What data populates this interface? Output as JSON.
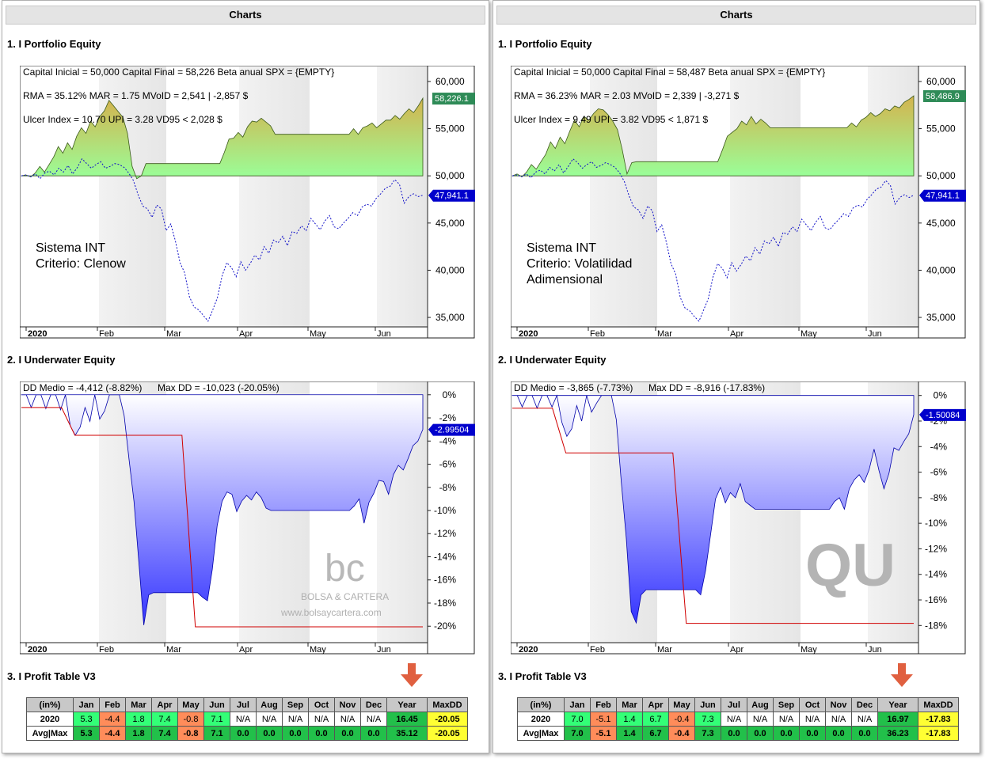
{
  "panels": [
    {
      "header": "Charts",
      "equity_title": "1. I Portfolio Equity",
      "underwater_title": "2. I Underwater Equity",
      "profit_title": "3. I Profit Table V3",
      "stats_line1": "Capital Inicial = 50,000   Capital Final = 58,226   Beta anual SPX = {EMPTY}",
      "stats_line2": "RMA = 35.12%   MAR = 1.75   MVoID = 2,541 | -2,857 $",
      "stats_line3": "Ulcer Index = 10.70   UPI = 3.28   VD95 < 2,028 $",
      "system_label1": "Sistema INT",
      "system_label2": "Criterio: Clenow",
      "system_label3": "",
      "dd_stats": "DD Medio = -4,412 (-8.82%)",
      "maxdd_stats": "Max DD = -10,023 (-20.05%)",
      "equity_badge": "58,226.1",
      "benchmark_badge": "47,941.1",
      "dd_badge": "-2.99504",
      "watermark": "bc",
      "watermark_line1": "BOLSA & CARTERA",
      "watermark_line2": "www.bolsaycartera.com"
    },
    {
      "header": "Charts",
      "equity_title": "1. I Portfolio Equity",
      "underwater_title": "2. I Underwater Equity",
      "profit_title": "3. I Profit Table V3",
      "stats_line1": "Capital Inicial = 50,000   Capital Final = 58,487   Beta anual SPX = {EMPTY}",
      "stats_line2": "RMA = 36.23%   MAR = 2.03   MVoID = 2,339 | -3,271 $",
      "stats_line3": "Ulcer Index = 9.49   UPI = 3.82   VD95 < 1,871 $",
      "system_label1": "Sistema INT",
      "system_label2": "Criterio: Volatilidad",
      "system_label3": "Adimensional",
      "dd_stats": "DD Medio = -3,865 (-7.73%)",
      "maxdd_stats": "Max DD = -8,916 (-17.83%)",
      "equity_badge": "58,486.9",
      "benchmark_badge": "47,941.1",
      "dd_badge": "-1.50084",
      "watermark": "QU",
      "watermark_line1": "",
      "watermark_line2": ""
    }
  ],
  "colors": {
    "equity_fill_top": "#d4b34e",
    "equity_fill_bottom": "#99ff99",
    "benchmark": "#1010c8",
    "dd_fill": "#3434ff",
    "maxdd_line": "#d00000",
    "badge_green": "#2e8b57",
    "badge_blue": "#0000cc",
    "arrow": "#e06040",
    "cell_green_bright": "#33ff77",
    "cell_green_dark": "#22c04a",
    "cell_orange": "#ff8c5a",
    "cell_yellow": "#ffff33"
  },
  "chart_data": [
    {
      "type": "area",
      "title": "1. I Portfolio Equity",
      "panel": 0,
      "x_labels": [
        "2020",
        "Feb",
        "Mar",
        "Apr",
        "May",
        "Jun"
      ],
      "yticks": [
        "60,000",
        "55,000",
        "50,000",
        "45,000",
        "40,000",
        "35,000"
      ],
      "ylim": [
        34000,
        61000
      ],
      "series": [
        {
          "values": [
            50000,
            50100,
            49900,
            50300,
            51000,
            50400,
            51200,
            52000,
            53100,
            52400,
            53500,
            52800,
            54200,
            55100,
            54500,
            55800,
            55200,
            56300,
            56900,
            58000,
            57400,
            56800,
            56200,
            54500,
            51000,
            49700,
            50000,
            51300,
            51300,
            51300,
            51300,
            51300,
            51300,
            51300,
            51300,
            51300,
            51300,
            51300,
            51300,
            51300,
            51300,
            51300,
            51300,
            51300,
            52500,
            53900,
            54000,
            54600,
            54100,
            55200,
            55800,
            55700,
            56100,
            55700,
            55300,
            54400,
            54400,
            54400,
            54400,
            54400,
            54400,
            54400,
            54400,
            54400,
            54400,
            54400,
            54400,
            54400,
            54400,
            54400,
            54400,
            54400,
            55000,
            54400,
            55100,
            55300,
            55600,
            55100,
            55500,
            55900,
            55900,
            56400,
            56000,
            56600,
            57100,
            56700,
            57400,
            58226
          ]
        },
        {
          "values": [
            50000,
            50100,
            49900,
            50200,
            49700,
            50300,
            50500,
            50100,
            50800,
            50400,
            51100,
            50200,
            50900,
            51800,
            51300,
            50800,
            51200,
            51500,
            50800,
            51000,
            51300,
            51200,
            50900,
            50300,
            49500,
            48000,
            46800,
            46500,
            45600,
            46900,
            46500,
            44200,
            44900,
            43100,
            40800,
            39700,
            37200,
            36100,
            35800,
            35200,
            34600,
            35800,
            37100,
            39400,
            40800,
            40300,
            39300,
            40900,
            40000,
            40700,
            41600,
            41100,
            42500,
            41800,
            43200,
            42900,
            43600,
            42600,
            44100,
            43900,
            44700,
            44200,
            45500,
            44900,
            44300,
            45200,
            45800,
            44600,
            44400,
            45000,
            45500,
            46100,
            45800,
            46700,
            47000,
            46800,
            47600,
            48100,
            48700,
            48900,
            49600,
            49100,
            47100,
            47800,
            48100,
            47800,
            47941
          ]
        }
      ]
    },
    {
      "type": "area",
      "title": "2. I Underwater Equity",
      "panel": 0,
      "x_labels": [
        "2020",
        "Feb",
        "Mar",
        "Apr",
        "May",
        "Jun"
      ],
      "yticks": [
        "0%",
        "-2%",
        "-4%",
        "-6%",
        "-8%",
        "-10%",
        "-12%",
        "-14%",
        "-16%",
        "-18%",
        "-20%"
      ],
      "ylim": [
        -20.6,
        0.6
      ],
      "series": [
        {
          "values": [
            0,
            0,
            -1.1,
            0,
            0,
            -1.2,
            0,
            0,
            -1.3,
            0,
            -2.7,
            -3.5,
            -2.8,
            -1.1,
            -2.3,
            0,
            -2.1,
            -1.4,
            0,
            0,
            0,
            -1.8,
            -5.6,
            -9.2,
            -14.5,
            -19.9,
            -17.3,
            -17.1,
            -17.1,
            -17.1,
            -17.1,
            -17.1,
            -17.1,
            -17.1,
            -17.1,
            -17.1,
            -17.1,
            -17.5,
            -17.8,
            -15.1,
            -11.3,
            -9.2,
            -8.4,
            -8.6,
            -10.1,
            -9.2,
            -8.7,
            -9.1,
            -8.4,
            -8.9,
            -9.8,
            -10.0,
            -10.0,
            -10.0,
            -10.0,
            -10.0,
            -10.0,
            -10.0,
            -10.0,
            -10.0,
            -10.0,
            -10.0,
            -10.0,
            -10.0,
            -10.0,
            -10.0,
            -10.0,
            -10.0,
            -9.6,
            -9.0,
            -11.1,
            -9.3,
            -8.5,
            -7.4,
            -7.5,
            -8.6,
            -6.9,
            -6.1,
            -6.5,
            -5.5,
            -4.4,
            -4.0,
            -3.0
          ]
        },
        {
          "values": [
            -1.1,
            -1.1,
            -1.1,
            -1.1,
            -3.5,
            -3.5,
            -3.5,
            -3.5,
            -3.5,
            -3.5,
            -3.5,
            -3.5,
            -3.5,
            -20.05,
            -20.05,
            -20.05,
            -20.05,
            -20.05,
            -20.05,
            -20.05,
            -20.05,
            -20.05,
            -20.05,
            -20.05,
            -20.05,
            -20.05,
            -20.05,
            -20.05,
            -20.05,
            -20.05,
            -20.05
          ]
        }
      ]
    },
    {
      "type": "area",
      "title": "1. I Portfolio Equity",
      "panel": 1,
      "x_labels": [
        "2020",
        "Feb",
        "Mar",
        "Apr",
        "May",
        "Jun"
      ],
      "yticks": [
        "60,000",
        "55,000",
        "50,000",
        "45,000",
        "40,000",
        "35,000"
      ],
      "ylim": [
        34000,
        61000
      ],
      "series": [
        {
          "values": [
            50000,
            50200,
            49900,
            50400,
            51200,
            50700,
            51500,
            52300,
            53600,
            52900,
            54100,
            53400,
            54700,
            55900,
            55200,
            56300,
            55900,
            56600,
            57100,
            57000,
            56500,
            55800,
            54900,
            52800,
            50200,
            51400,
            51500,
            51500,
            51500,
            51500,
            51500,
            51500,
            51500,
            51500,
            51500,
            51500,
            51500,
            51500,
            51500,
            51500,
            51500,
            51500,
            51500,
            51500,
            52800,
            54200,
            54600,
            55000,
            55800,
            55400,
            56300,
            55500,
            56000,
            55600,
            55100,
            55100,
            55100,
            55100,
            55100,
            55100,
            55100,
            55100,
            55100,
            55100,
            55100,
            55100,
            55100,
            55100,
            55100,
            55100,
            55100,
            55600,
            55200,
            55900,
            56200,
            56700,
            56300,
            56600,
            57100,
            56900,
            57400,
            57200,
            57800,
            58100,
            58487
          ]
        },
        {
          "values": [
            50000,
            50100,
            49900,
            50200,
            49800,
            50400,
            50600,
            50200,
            50900,
            50500,
            51200,
            50300,
            51000,
            51800,
            51400,
            50800,
            51200,
            51500,
            50900,
            51100,
            51400,
            51200,
            50900,
            50300,
            49400,
            47900,
            46700,
            46400,
            45500,
            46800,
            46300,
            44100,
            44800,
            43000,
            40700,
            39600,
            37100,
            36000,
            35700,
            35100,
            34600,
            35800,
            37000,
            39300,
            40700,
            40200,
            39200,
            40800,
            39900,
            40600,
            41500,
            41000,
            42400,
            41700,
            43100,
            42800,
            43500,
            42500,
            44000,
            43800,
            44600,
            44100,
            45400,
            44800,
            44200,
            45100,
            45700,
            44500,
            44300,
            44900,
            45400,
            46000,
            45700,
            46600,
            46900,
            46700,
            47500,
            48000,
            48600,
            48800,
            49500,
            49000,
            47000,
            47700,
            48000,
            47700,
            47941
          ]
        }
      ]
    },
    {
      "type": "area",
      "title": "2. I Underwater Equity",
      "panel": 1,
      "x_labels": [
        "2020",
        "Feb",
        "Mar",
        "Apr",
        "May",
        "Jun"
      ],
      "yticks": [
        "0%",
        "-2%",
        "-4%",
        "-6%",
        "-8%",
        "-10%",
        "-12%",
        "-14%",
        "-16%",
        "-18%"
      ],
      "ylim": [
        -18.6,
        0.6
      ],
      "series": [
        {
          "values": [
            0,
            0,
            -0.9,
            0,
            0,
            -1.0,
            0,
            0,
            -0.9,
            0,
            -2.1,
            -3.2,
            -2.6,
            -0.8,
            -2.0,
            0,
            -1.3,
            -0.6,
            0,
            0,
            0,
            -1.9,
            -6.8,
            -11.2,
            -16.9,
            -17.8,
            -15.6,
            -15.2,
            -15.2,
            -15.2,
            -15.2,
            -15.2,
            -15.2,
            -15.2,
            -15.2,
            -15.2,
            -15.2,
            -15.2,
            -15.6,
            -13.7,
            -10.9,
            -8.1,
            -7.2,
            -8.4,
            -7.6,
            -8.0,
            -6.9,
            -8.3,
            -8.6,
            -8.9,
            -8.9,
            -8.9,
            -8.9,
            -8.9,
            -8.9,
            -8.9,
            -8.9,
            -8.9,
            -8.9,
            -8.9,
            -8.9,
            -8.9,
            -8.9,
            -8.9,
            -8.9,
            -8.3,
            -8.0,
            -8.9,
            -7.3,
            -6.6,
            -6.2,
            -6.8,
            -5.8,
            -4.2,
            -5.9,
            -7.3,
            -6.1,
            -4.1,
            -4.3,
            -3.6,
            -3.0,
            -1.5
          ]
        },
        {
          "values": [
            -1.0,
            -1.0,
            -1.0,
            -1.0,
            -4.5,
            -4.5,
            -4.5,
            -4.5,
            -4.5,
            -4.5,
            -4.5,
            -4.5,
            -4.5,
            -17.83,
            -17.83,
            -17.83,
            -17.83,
            -17.83,
            -17.83,
            -17.83,
            -17.83,
            -17.83,
            -17.83,
            -17.83,
            -17.83,
            -17.83,
            -17.83,
            -17.83,
            -17.83,
            -17.83,
            -17.83
          ]
        }
      ]
    },
    {
      "type": "table",
      "title": "3. I Profit Table V3",
      "panel": 0,
      "columns": [
        "(in%)",
        "Jan",
        "Feb",
        "Mar",
        "Apr",
        "May",
        "Jun",
        "Jul",
        "Aug",
        "Sep",
        "Oct",
        "Nov",
        "Dec",
        "Year",
        "MaxDD"
      ],
      "rows": [
        [
          "2020",
          "5.3",
          "-4.4",
          "1.8",
          "7.4",
          "-0.8",
          "7.1",
          "N/A",
          "N/A",
          "N/A",
          "N/A",
          "N/A",
          "N/A",
          "16.45",
          "-20.05"
        ],
        [
          "Avg|Max",
          "5.3",
          "-4.4",
          "1.8",
          "7.4",
          "-0.8",
          "7.1",
          "0.0",
          "0.0",
          "0.0",
          "0.0",
          "0.0",
          "0.0",
          "35.12",
          "-20.05"
        ]
      ]
    },
    {
      "type": "table",
      "title": "3. I Profit Table V3",
      "panel": 1,
      "columns": [
        "(in%)",
        "Jan",
        "Feb",
        "Mar",
        "Apr",
        "May",
        "Jun",
        "Jul",
        "Aug",
        "Sep",
        "Oct",
        "Nov",
        "Dec",
        "Year",
        "MaxDD"
      ],
      "rows": [
        [
          "2020",
          "7.0",
          "-5.1",
          "1.4",
          "6.7",
          "-0.4",
          "7.3",
          "N/A",
          "N/A",
          "N/A",
          "N/A",
          "N/A",
          "N/A",
          "16.97",
          "-17.83"
        ],
        [
          "Avg|Max",
          "7.0",
          "-5.1",
          "1.4",
          "6.7",
          "-0.4",
          "7.3",
          "0.0",
          "0.0",
          "0.0",
          "0.0",
          "0.0",
          "0.0",
          "36.23",
          "-17.83"
        ]
      ]
    }
  ]
}
